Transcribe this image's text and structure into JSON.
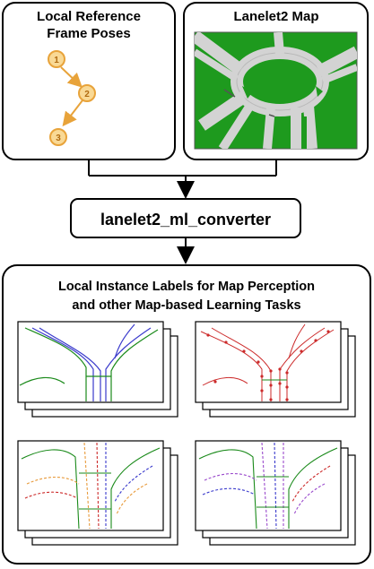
{
  "boxes": {
    "poses": {
      "title_line1": "Local Reference",
      "title_line2": "Frame Poses"
    },
    "map": {
      "title": "Lanelet2 Map"
    },
    "converter": {
      "title": "lanelet2_ml_converter"
    },
    "labels": {
      "title_line1": "Local Instance Labels for Map Perception",
      "title_line2": "and other Map-based Learning Tasks"
    }
  },
  "poses": [
    {
      "label": "1"
    },
    {
      "label": "2"
    },
    {
      "label": "3"
    }
  ],
  "colors": {
    "border": "#000000",
    "pose_fill": "#f9d995",
    "pose_stroke": "#e8a33a",
    "map_bg": "#1e9a1e",
    "road": "#d3d3d3",
    "lane_green": "#1a8a1a",
    "lane_blue": "#3a3acc",
    "lane_red": "#cc2a2a",
    "lane_orange": "#e89a3a",
    "lane_purple": "#9a4acc"
  },
  "label_cards": [
    {
      "style": "lanes"
    },
    {
      "style": "points"
    },
    {
      "style": "mixed"
    },
    {
      "style": "dashed"
    }
  ]
}
